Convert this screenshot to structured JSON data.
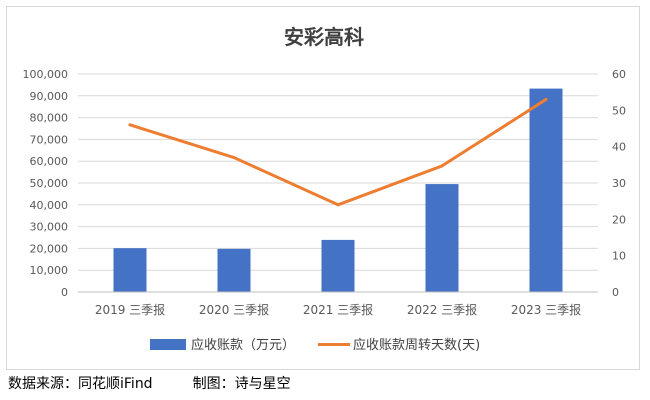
{
  "chart_data": {
    "type": "bar+line",
    "title": "安彩高科",
    "categories": [
      "2019 三季报",
      "2020 三季报",
      "2021 三季报",
      "2022 三季报",
      "2023 三季报"
    ],
    "series": [
      {
        "name": "应收账款（万元）",
        "type": "bar",
        "axis": "left",
        "color": "#4472C4",
        "values": [
          20100,
          19800,
          23900,
          49500,
          93300
        ]
      },
      {
        "name": "应收账款周转天数(天)",
        "type": "line",
        "axis": "right",
        "color": "#ED7D31",
        "values": [
          46,
          37,
          24,
          34.7,
          53
        ]
      }
    ],
    "y_left": {
      "min": 0,
      "max": 100000,
      "step": 10000,
      "tick_labels": [
        "0",
        "10,000",
        "20,000",
        "30,000",
        "40,000",
        "50,000",
        "60,000",
        "70,000",
        "80,000",
        "90,000",
        "100,000"
      ]
    },
    "y_right": {
      "min": 0,
      "max": 60,
      "step": 10,
      "tick_labels": [
        "0",
        "10",
        "20",
        "30",
        "40",
        "50",
        "60"
      ]
    },
    "grid": true,
    "legend": "bottom"
  },
  "footer": {
    "source": "数据来源：同花顺iFind",
    "credit": "制图：诗与星空"
  }
}
